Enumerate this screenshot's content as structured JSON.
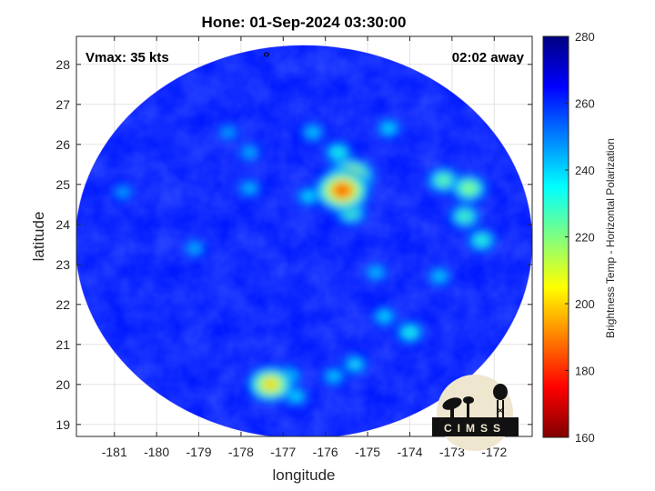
{
  "chart_data": {
    "type": "heatmap",
    "title": "Hone: 01-Sep-2024 03:30:00",
    "xlabel": "longitude",
    "ylabel": "latitude",
    "xlim": [
      -181.9,
      -171.1
    ],
    "ylim": [
      18.7,
      28.7
    ],
    "x_ticks": [
      -181,
      -180,
      -179,
      -178,
      -177,
      -176,
      -175,
      -174,
      -173,
      -172
    ],
    "y_ticks": [
      19,
      20,
      21,
      22,
      23,
      24,
      25,
      26,
      27,
      28
    ],
    "grid": true,
    "colorbar": {
      "label": "Brightness Temp - Horizontal Polarization",
      "range": [
        160,
        280
      ],
      "ticks": [
        160,
        180,
        200,
        220,
        240,
        260,
        280
      ],
      "colormap": "jet"
    },
    "annotations": {
      "vmax": "Vmax: 35 kts",
      "time_offset": "02:02 away"
    },
    "swath": {
      "center_lon": -176.5,
      "center_lat": 23.4,
      "background_value": 262
    },
    "features": [
      {
        "lon": -175.6,
        "lat": 24.85,
        "value": 185
      },
      {
        "lon": -175.4,
        "lat": 25.2,
        "value": 198
      },
      {
        "lon": -175.4,
        "lat": 24.3,
        "value": 225
      },
      {
        "lon": -175.7,
        "lat": 25.8,
        "value": 232
      },
      {
        "lon": -176.4,
        "lat": 24.7,
        "value": 236
      },
      {
        "lon": -177.3,
        "lat": 20.0,
        "value": 200
      },
      {
        "lon": -176.9,
        "lat": 20.2,
        "value": 232
      },
      {
        "lon": -176.7,
        "lat": 19.7,
        "value": 236
      },
      {
        "lon": -172.6,
        "lat": 24.9,
        "value": 218
      },
      {
        "lon": -173.2,
        "lat": 25.1,
        "value": 222
      },
      {
        "lon": -172.7,
        "lat": 24.2,
        "value": 226
      },
      {
        "lon": -172.3,
        "lat": 23.6,
        "value": 230
      },
      {
        "lon": -174.5,
        "lat": 26.4,
        "value": 236
      },
      {
        "lon": -176.3,
        "lat": 26.3,
        "value": 238
      },
      {
        "lon": -174.0,
        "lat": 21.3,
        "value": 232
      },
      {
        "lon": -174.6,
        "lat": 21.7,
        "value": 236
      },
      {
        "lon": -175.3,
        "lat": 20.5,
        "value": 234
      },
      {
        "lon": -175.8,
        "lat": 20.2,
        "value": 238
      },
      {
        "lon": -173.3,
        "lat": 22.7,
        "value": 238
      },
      {
        "lon": -174.8,
        "lat": 22.8,
        "value": 240
      },
      {
        "lon": -177.8,
        "lat": 24.9,
        "value": 240
      },
      {
        "lon": -177.8,
        "lat": 25.8,
        "value": 242
      },
      {
        "lon": -179.1,
        "lat": 23.4,
        "value": 242
      },
      {
        "lon": -180.8,
        "lat": 24.8,
        "value": 244
      },
      {
        "lon": -178.3,
        "lat": 26.3,
        "value": 244
      }
    ]
  },
  "logo": {
    "text": "CIMSS"
  }
}
